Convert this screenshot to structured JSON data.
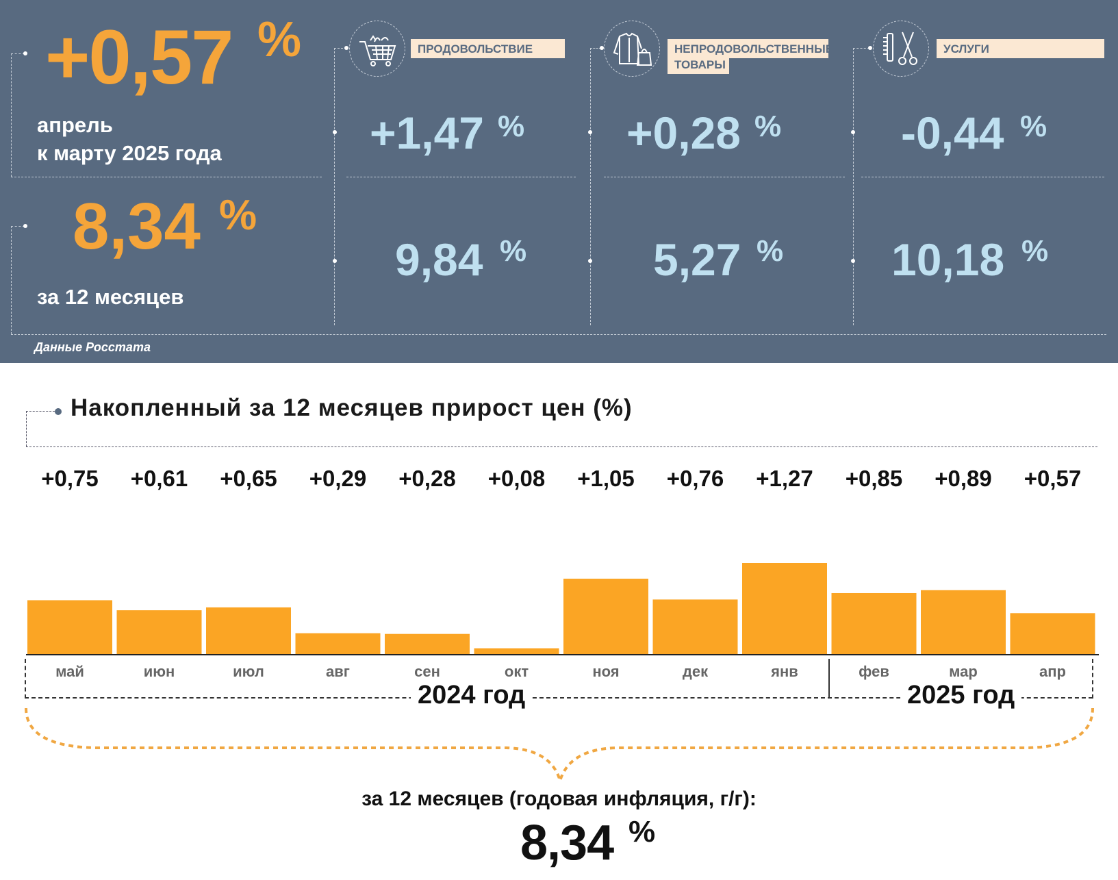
{
  "summary": {
    "monthly_value": "+0,57",
    "monthly_pct": "%",
    "monthly_label_1": "апрель",
    "monthly_label_2": "к марту 2025 года",
    "annual_value": "8,34",
    "annual_pct": "%",
    "annual_label": "за 12 месяцев",
    "source": "Данные Росстата"
  },
  "categories": [
    {
      "name_1": "ПРОДОВОЛЬСТВИЕ",
      "name_2": "",
      "icon": "shopping-cart-icon",
      "monthly": "+1,47",
      "annual": "9,84",
      "pct": "%"
    },
    {
      "name_1": "НЕПРОДОВОЛЬСТВЕННЫЕ",
      "name_2": "ТОВАРЫ",
      "icon": "clothing-bag-icon",
      "monthly": "+0,28",
      "annual": "5,27",
      "pct": "%"
    },
    {
      "name_1": "УСЛУГИ",
      "name_2": "",
      "icon": "comb-scissors-icon",
      "monthly": "-0,44",
      "annual": "10,18",
      "pct": "%"
    }
  ],
  "colors": {
    "panel": "#586a80",
    "orange": "#f5a53a",
    "bar": "#fba524",
    "light_blue": "#bfe0f0",
    "tag": "#fbe8d3"
  },
  "chart_data": {
    "type": "bar",
    "title": "Накопленный за 12 месяцев прирост цен (%)",
    "categories": [
      "май",
      "июн",
      "июл",
      "авг",
      "сен",
      "окт",
      "ноя",
      "дек",
      "янв",
      "фев",
      "мар",
      "апр"
    ],
    "values": [
      0.75,
      0.61,
      0.65,
      0.29,
      0.28,
      0.08,
      1.05,
      0.76,
      1.27,
      0.85,
      0.89,
      0.57
    ],
    "value_labels": [
      "+0,75",
      "+0,61",
      "+0,65",
      "+0,29",
      "+0,28",
      "+0,08",
      "+1,05",
      "+0,76",
      "+1,27",
      "+0,85",
      "+0,89",
      "+0,57"
    ],
    "years": [
      "2024 год",
      "2025 год"
    ],
    "ylim": [
      0,
      1.27
    ],
    "grid": false,
    "total_label": "за 12 месяцев (годовая инфляция, г/г):",
    "total_value": "8,34",
    "total_pct": "%"
  }
}
